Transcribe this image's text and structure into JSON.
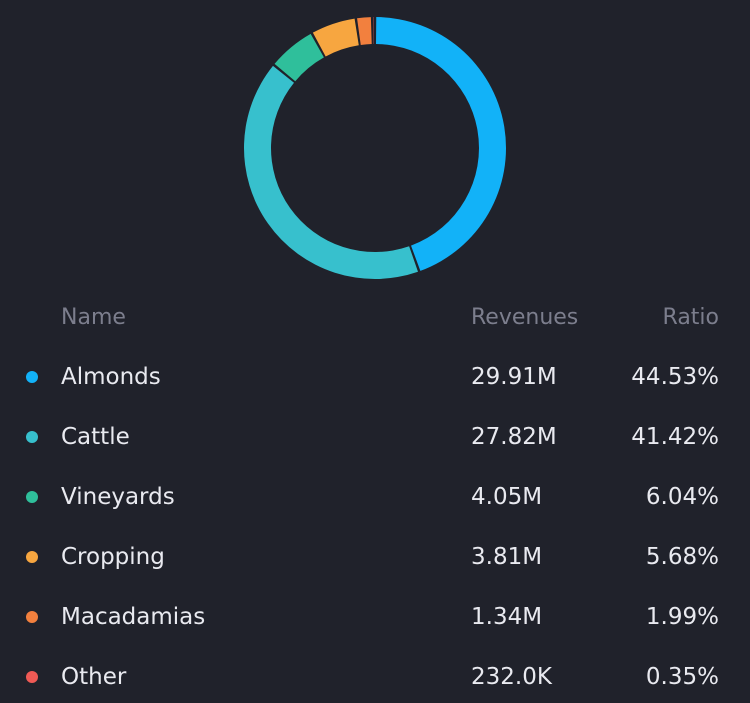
{
  "table": {
    "headers": {
      "name": "Name",
      "revenues": "Revenues",
      "ratio": "Ratio"
    },
    "rows": [
      {
        "name": "Almonds",
        "revenues": "29.91M",
        "ratio": "44.53%",
        "color": "#12b2f8"
      },
      {
        "name": "Cattle",
        "revenues": "27.82M",
        "ratio": "41.42%",
        "color": "#37c0cd"
      },
      {
        "name": "Vineyards",
        "revenues": "4.05M",
        "ratio": "6.04%",
        "color": "#2fbf9b"
      },
      {
        "name": "Cropping",
        "revenues": "3.81M",
        "ratio": "5.68%",
        "color": "#f7a640"
      },
      {
        "name": "Macadamias",
        "revenues": "1.34M",
        "ratio": "1.99%",
        "color": "#f2803e"
      },
      {
        "name": "Other",
        "revenues": "232.0K",
        "ratio": "0.35%",
        "color": "#ef5a55"
      }
    ]
  },
  "chart_data": {
    "type": "pie",
    "donut": true,
    "categories": [
      "Almonds",
      "Cattle",
      "Vineyards",
      "Cropping",
      "Macadamias",
      "Other"
    ],
    "values": [
      44.53,
      41.42,
      6.04,
      5.68,
      1.99,
      0.35
    ],
    "colors": [
      "#12b2f8",
      "#37c0cd",
      "#2fbf9b",
      "#f7a640",
      "#f2803e",
      "#ef5a55"
    ]
  }
}
